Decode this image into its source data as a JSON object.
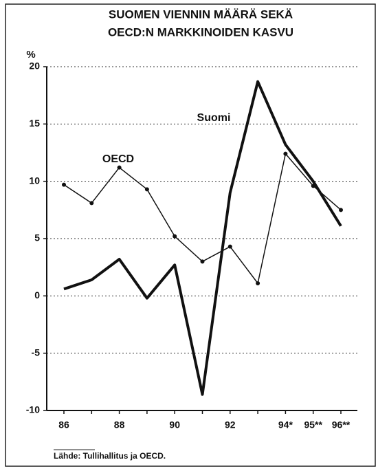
{
  "chart_data": {
    "type": "line",
    "title": [
      "SUOMEN VIENNIN MÄÄRÄ SEKÄ",
      "OECD:N MARKKINOIDEN KASVU"
    ],
    "y_label": "%",
    "categories": [
      "86",
      null,
      "88",
      null,
      "90",
      null,
      "92",
      null,
      "94*",
      "95**",
      "96**"
    ],
    "series": [
      {
        "name": "OECD",
        "color": "#111111",
        "values": [
          9.7,
          8.1,
          11.2,
          9.3,
          5.2,
          3.0,
          4.3,
          1.1,
          12.4,
          9.6,
          7.5
        ]
      },
      {
        "name": "Suomi",
        "color": "#111111",
        "values": [
          0.6,
          1.4,
          3.2,
          -0.2,
          2.7,
          -8.6,
          9.0,
          18.7,
          13.2,
          10.0,
          6.1
        ]
      }
    ],
    "ylim": [
      -10,
      20
    ],
    "yticks": [
      -10,
      -5,
      0,
      5,
      10,
      15,
      20
    ],
    "grid": true,
    "source": "Lähde: Tullihallitus ja OECD."
  }
}
